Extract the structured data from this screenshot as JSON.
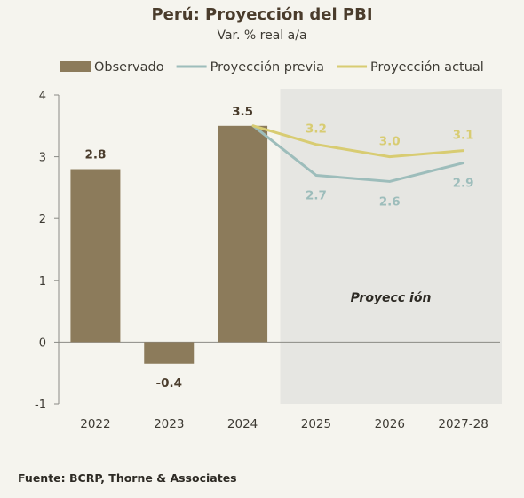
{
  "title": "Perú: Proyección del PBI",
  "subtitle": "Var. % real a/a",
  "source": "Fuente: BCRP, Thorne & Associates",
  "colors": {
    "observed": "#8c7b5b",
    "previous": "#9dbdbb",
    "current": "#d8cc72",
    "projection_bg": "#e6e6e2"
  },
  "chart_data": {
    "type": "bar+line",
    "categories": [
      "2022",
      "2023",
      "2024",
      "2025",
      "2026",
      "2027-28"
    ],
    "ylim": [
      -1,
      4
    ],
    "yticks": [
      -1,
      0,
      1,
      2,
      3,
      4
    ],
    "legend_position": "top",
    "projection_label": "Proyecc ión",
    "projection_start": "2025",
    "series": [
      {
        "name": "Observado",
        "kind": "bar",
        "points": [
          {
            "x": "2022",
            "y": 2.8,
            "label": "2.8"
          },
          {
            "x": "2023",
            "y": -0.35,
            "label": "-0.4"
          },
          {
            "x": "2024",
            "y": 3.5,
            "label": "3.5"
          }
        ]
      },
      {
        "name": "Proyección previa",
        "kind": "line",
        "points": [
          {
            "x": "2024",
            "y": 3.5
          },
          {
            "x": "2025",
            "y": 2.7,
            "label": "2.7"
          },
          {
            "x": "2026",
            "y": 2.6,
            "label": "2.6"
          },
          {
            "x": "2027-28",
            "y": 2.9,
            "label": "2.9"
          }
        ]
      },
      {
        "name": "Proyección actual",
        "kind": "line",
        "points": [
          {
            "x": "2024",
            "y": 3.5
          },
          {
            "x": "2025",
            "y": 3.2,
            "label": "3.2"
          },
          {
            "x": "2026",
            "y": 3.0,
            "label": "3.0"
          },
          {
            "x": "2027-28",
            "y": 3.1,
            "label": "3.1"
          }
        ]
      }
    ]
  }
}
